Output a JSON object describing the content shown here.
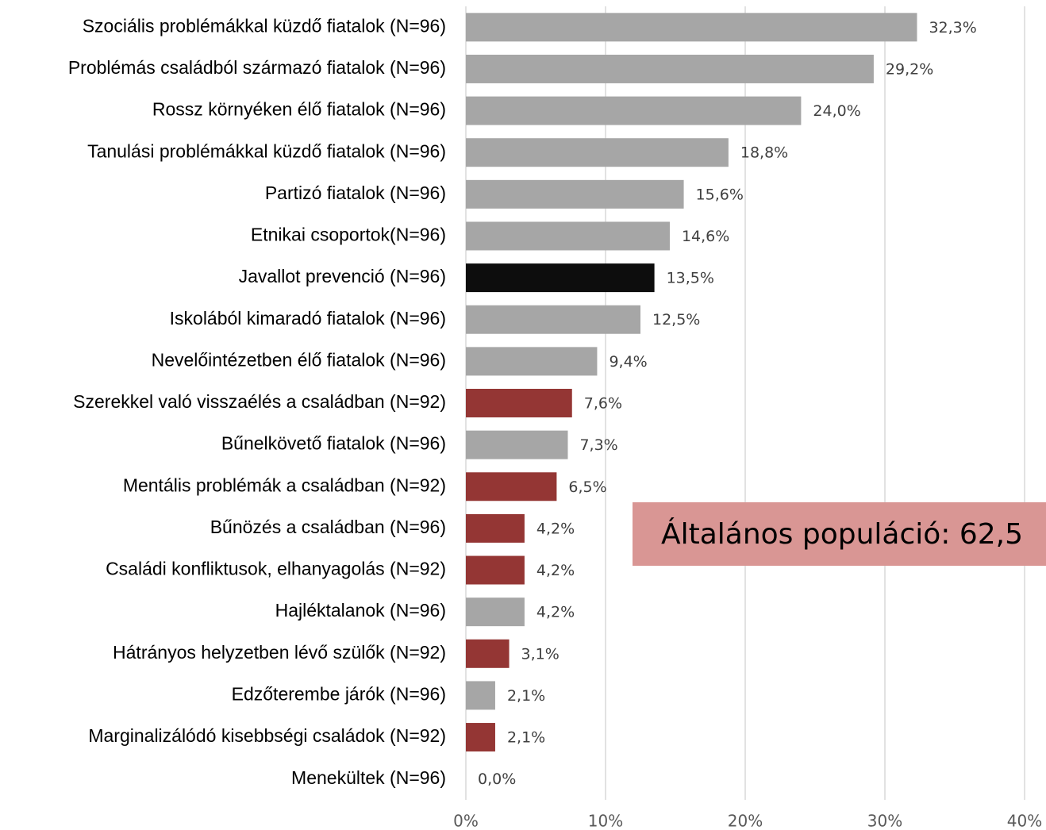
{
  "chart_data": {
    "type": "barh",
    "categories": [
      "Szociális problémákkal küzdő fiatalok (N=96)",
      "Problémás családból származó fiatalok (N=96)",
      "Rossz környéken élő fiatalok (N=96)",
      "Tanulási problémákkal küzdő fiatalok (N=96)",
      "Partizó fiatalok (N=96)",
      "Etnikai csoportok(N=96)",
      "Javallot prevenció  (N=96)",
      "Iskolából kimaradó fiatalok (N=96)",
      "Nevelőintézetben élő fiatalok (N=96)",
      "Szerekkel való visszaélés a családban (N=92)",
      "Bűnelkövető fiatalok (N=96)",
      "Mentális problémák a családban (N=92)",
      "Bűnözés a családban (N=96)",
      "Családi konfliktusok, elhanyagolás (N=92)",
      "Hajléktalanok (N=96)",
      "Hátrányos helyzetben lévő szülők  (N=92)",
      "Edzőterembe járók (N=96)",
      "Marginalizálódó kisebbségi családok (N=92)",
      "Menekültek (N=96)"
    ],
    "values": [
      32.3,
      29.2,
      24.0,
      18.8,
      15.6,
      14.6,
      13.5,
      12.5,
      9.4,
      7.6,
      7.3,
      6.5,
      4.2,
      4.2,
      4.2,
      3.1,
      2.1,
      2.1,
      0.0
    ],
    "value_labels": [
      "32,3%",
      "29,2%",
      "24,0%",
      "18,8%",
      "15,6%",
      "14,6%",
      "13,5%",
      "12,5%",
      "9,4%",
      "7,6%",
      "7,3%",
      "6,5%",
      "4,2%",
      "4,2%",
      "4,2%",
      "3,1%",
      "2,1%",
      "2,1%",
      "0,0%"
    ],
    "colors": [
      "#a6a6a6",
      "#a6a6a6",
      "#a6a6a6",
      "#a6a6a6",
      "#a6a6a6",
      "#a6a6a6",
      "#0d0d0d",
      "#a6a6a6",
      "#a6a6a6",
      "#943634",
      "#a6a6a6",
      "#943634",
      "#943634",
      "#943634",
      "#a6a6a6",
      "#943634",
      "#a6a6a6",
      "#943634",
      "#a6a6a6"
    ],
    "xlim": [
      0,
      40
    ],
    "xticks": [
      {
        "value": 0,
        "label": "0%"
      },
      {
        "value": 10,
        "label": "10%"
      },
      {
        "value": 20,
        "label": "20%"
      },
      {
        "value": 30,
        "label": "30%"
      },
      {
        "value": 40,
        "label": "40%"
      }
    ],
    "grid": true,
    "annotation": "Általános populáció: 62,5"
  }
}
